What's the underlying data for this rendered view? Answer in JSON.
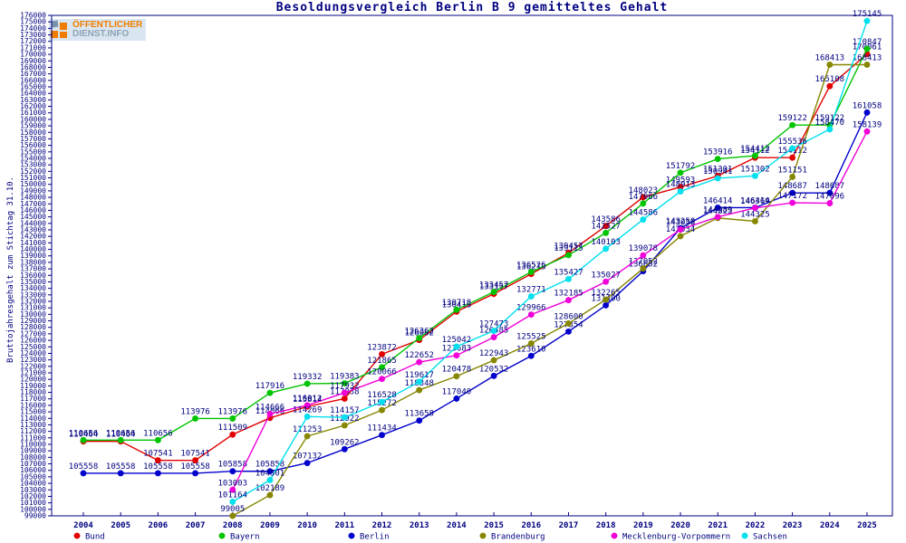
{
  "title": "Besoldungsvergleich Berlin B 9 gemitteltes Gehalt",
  "y_axis_title": "Bruttojahresgehalt zum Stichtag 31.10.",
  "logo": {
    "line1": "ÖFFENTLICHER",
    "line2": "DIENST.INFO"
  },
  "colors": {
    "text": "#000080",
    "border": "#000080",
    "logo_orange": "#f07d00",
    "logo_gray": "#8fa3b5"
  },
  "chart_data": {
    "type": "line",
    "title": "Besoldungsvergleich Berlin B 9 gemitteltes Gehalt",
    "xlabel": "",
    "ylabel": "Bruttojahresgehalt zum Stichtag 31.10.",
    "x": [
      2004,
      2005,
      2006,
      2007,
      2008,
      2009,
      2010,
      2011,
      2012,
      2013,
      2014,
      2015,
      2016,
      2017,
      2018,
      2019,
      2020,
      2021,
      2022,
      2023,
      2024,
      2025
    ],
    "ylim": [
      99000,
      176000
    ],
    "ytick_step": 1000,
    "grid": false,
    "legend_position": "bottom",
    "point_labels": true,
    "series": [
      {
        "name": "Bund",
        "color": "#e10000",
        "values": [
          110464,
          110464,
          107541,
          107541,
          111509,
          114066,
          115814,
          117038,
          123872,
          126062,
          130418,
          133157,
          136213,
          139457,
          143586,
          148023,
          149593,
          151301,
          154112,
          154112,
          165108,
          170061
        ]
      },
      {
        "name": "Bayern",
        "color": "#00c400",
        "values": [
          110656,
          110656,
          110656,
          113976,
          113976,
          117916,
          119332,
          119383,
          121865,
          126362,
          130718,
          133457,
          136526,
          139115,
          142527,
          147066,
          151792,
          153916,
          154412,
          159122,
          159122,
          170847
        ]
      },
      {
        "name": "Berlin",
        "color": "#0000cc",
        "values": [
          105558,
          105558,
          105558,
          105558,
          105858,
          105858,
          107132,
          109262,
          111434,
          113658,
          117040,
          120532,
          123610,
          127354,
          131400,
          136652,
          143250,
          146414,
          146414,
          148687,
          148687,
          161058
        ]
      },
      {
        "name": "Brandenburg",
        "color": "#868600",
        "values": [
          null,
          null,
          null,
          null,
          99005,
          102189,
          111253,
          112922,
          115272,
          118348,
          120478,
          122943,
          125525,
          128600,
          132265,
          137052,
          142034,
          144825,
          144325,
          151151,
          168413,
          168413
        ]
      },
      {
        "name": "Mecklenburg-Vorpommern",
        "color": "#f000d8",
        "values": [
          null,
          null,
          null,
          null,
          103003,
          114666,
          116012,
          117932,
          120066,
          122652,
          123683,
          126485,
          129966,
          132185,
          135027,
          139078,
          143058,
          144989,
          146369,
          147172,
          147096,
          158139
        ]
      },
      {
        "name": "Sachsen",
        "color": "#00e0ee",
        "values": [
          null,
          null,
          null,
          null,
          101164,
          104501,
          114269,
          114157,
          116528,
          119617,
          125042,
          127473,
          132771,
          135427,
          140103,
          144586,
          148913,
          150941,
          151302,
          155536,
          158470,
          175145
        ]
      }
    ]
  }
}
